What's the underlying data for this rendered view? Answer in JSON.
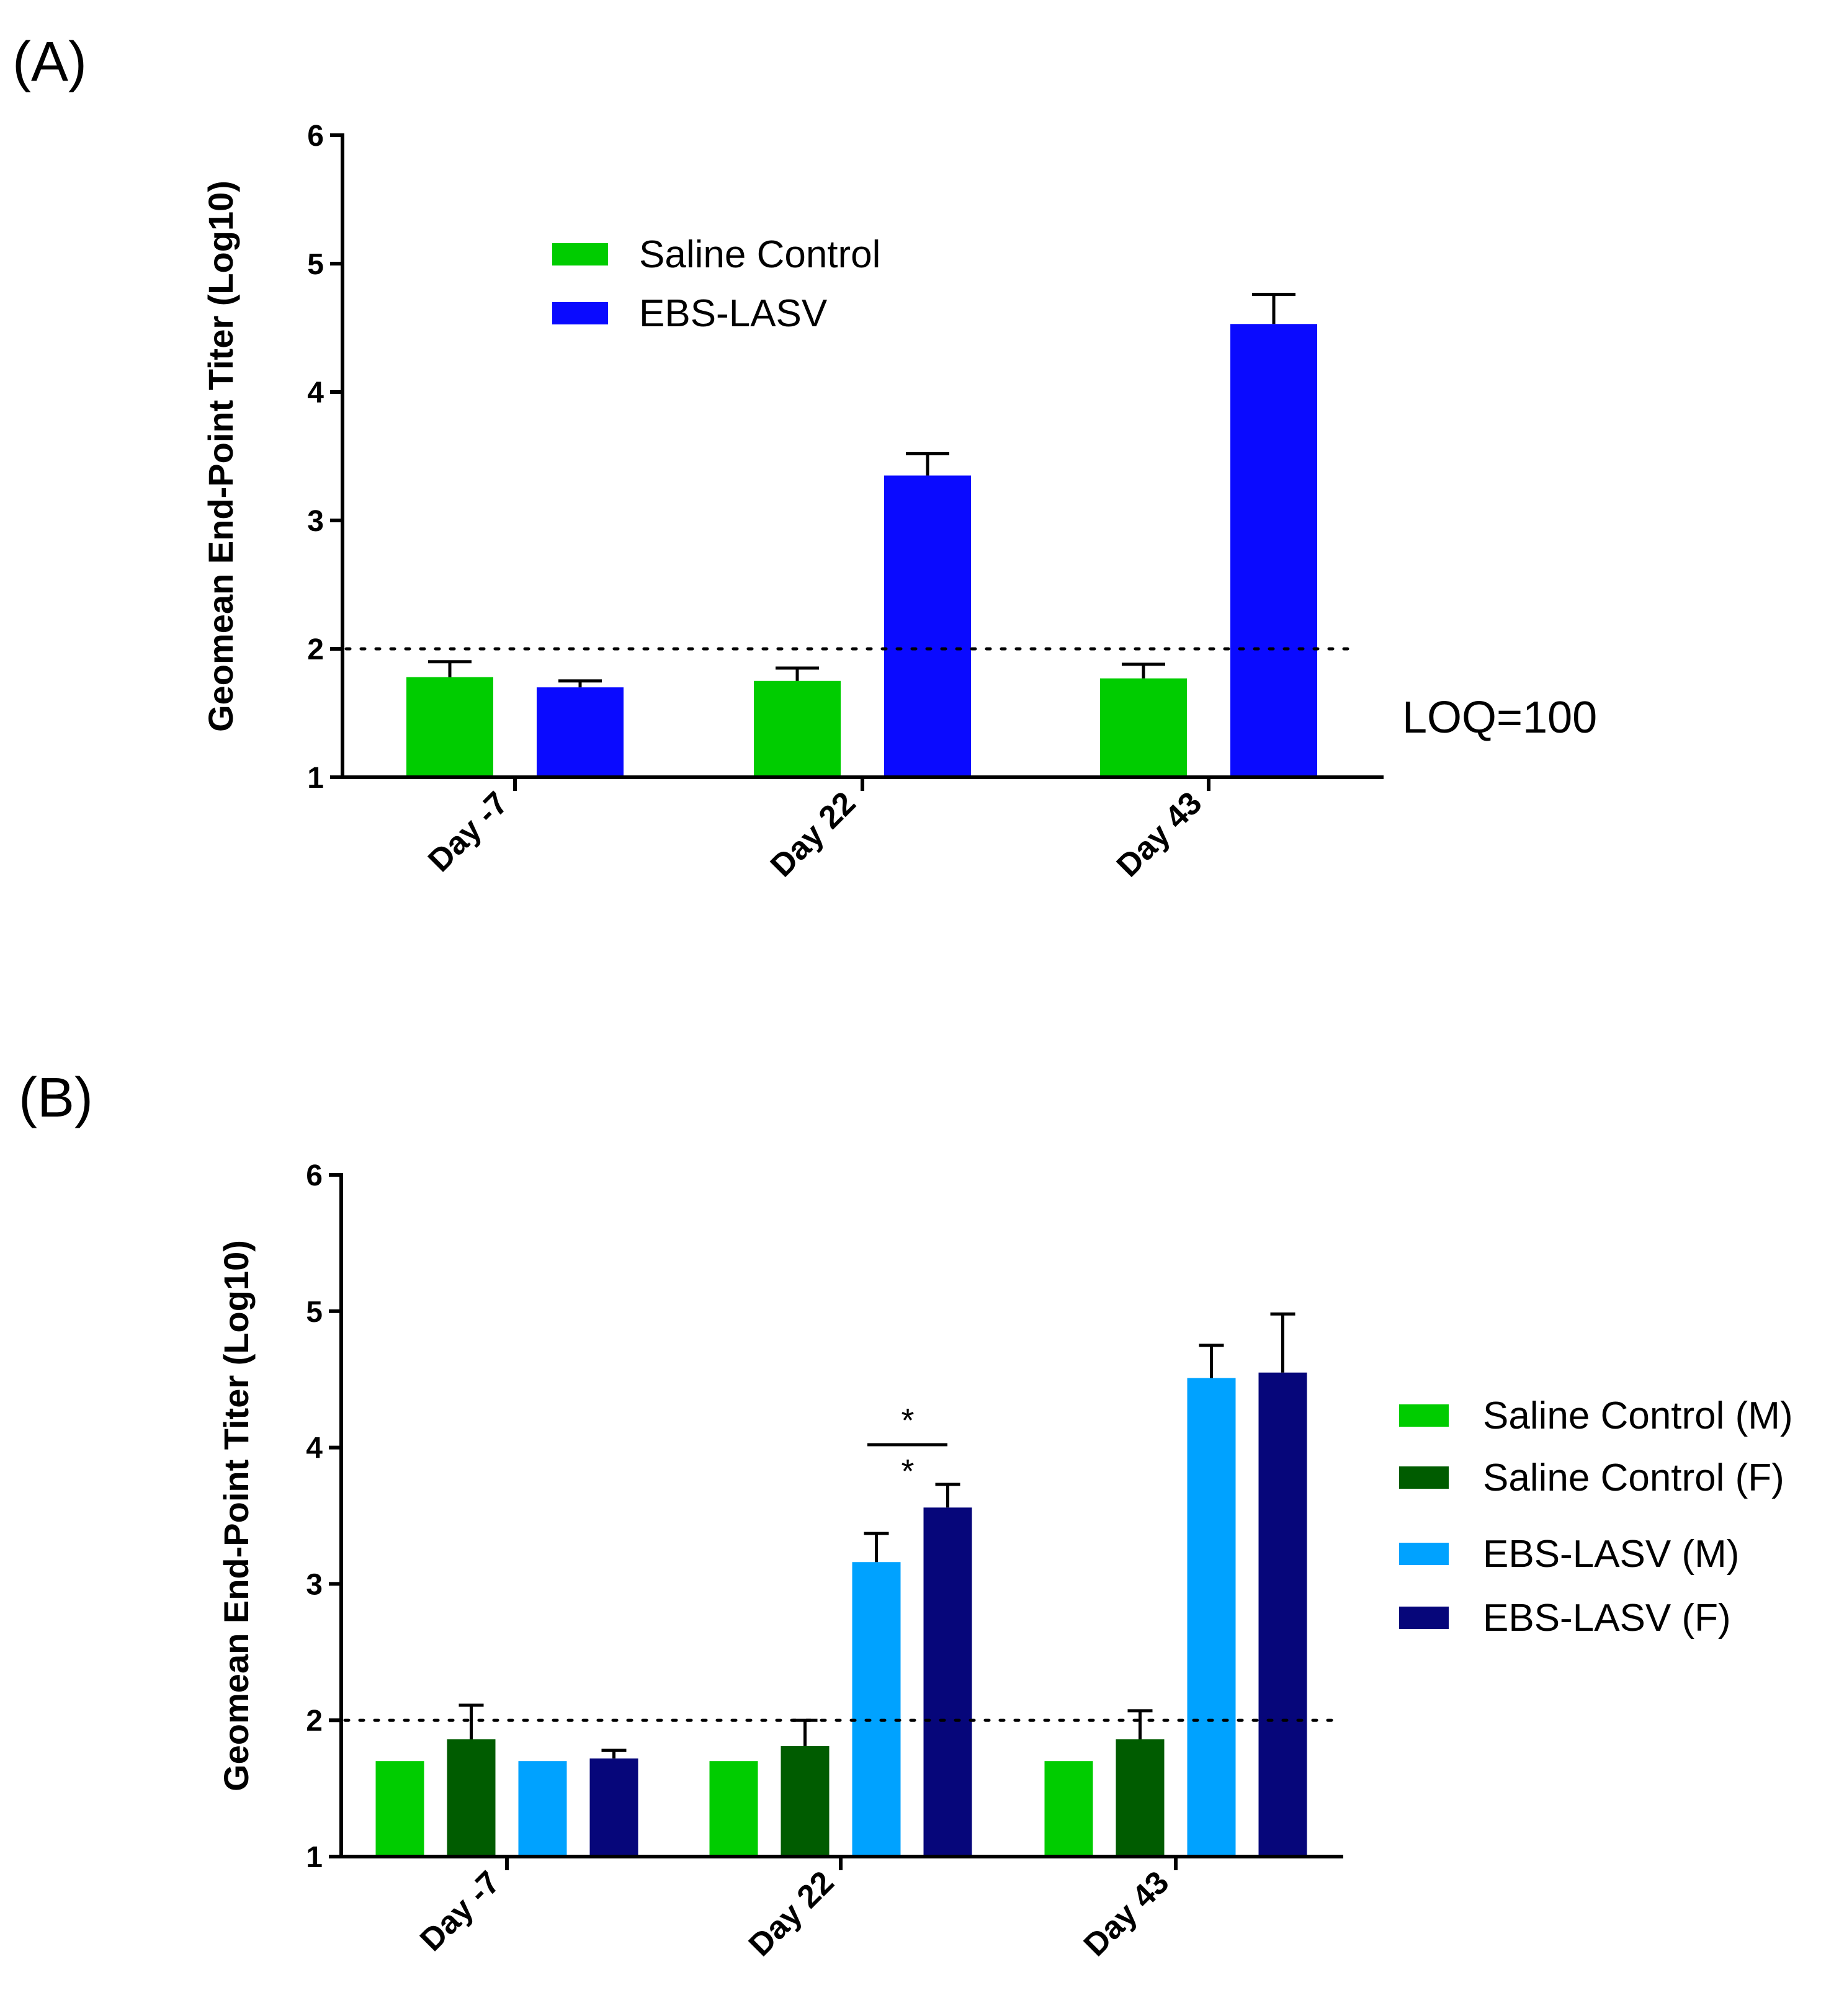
{
  "panels": {
    "a": {
      "label": "(A)",
      "loq_label": "LOQ=100"
    },
    "b": {
      "label": "(B)",
      "significance": [
        "*",
        "*"
      ]
    }
  },
  "chart_data": [
    {
      "type": "bar",
      "title": "",
      "xlabel": "",
      "ylabel": "Geomean End-Point Titer (Log10)",
      "ylim": [
        1,
        6
      ],
      "yticks": [
        "1",
        "2",
        "3",
        "4",
        "5",
        "6"
      ],
      "categories": [
        "Day -7",
        "Day 22",
        "Day 43"
      ],
      "reference_line": {
        "y": 2,
        "style": "dotted",
        "label": "LOQ=100"
      },
      "legend_position": "top-left",
      "series": [
        {
          "name": "Saline Control",
          "color": "#00cc00",
          "values": [
            1.78,
            1.75,
            1.77
          ],
          "error": [
            0.12,
            0.1,
            0.11
          ]
        },
        {
          "name": "EBS-LASV",
          "color": "#0a0aff",
          "values": [
            1.7,
            3.35,
            4.53
          ],
          "error": [
            0.05,
            0.17,
            0.23
          ]
        }
      ]
    },
    {
      "type": "bar",
      "title": "",
      "xlabel": "",
      "ylabel": "Geomean End-Point Titer (Log10)",
      "ylim": [
        1,
        6
      ],
      "yticks": [
        "1",
        "2",
        "3",
        "4",
        "5",
        "6"
      ],
      "categories": [
        "Day -7",
        "Day 22",
        "Day 43"
      ],
      "reference_line": {
        "y": 2,
        "style": "dotted"
      },
      "legend_position": "right",
      "annotations": [
        {
          "text": "* *",
          "between": [
            "EBS-LASV (M)",
            "EBS-LASV (F)"
          ],
          "category": "Day 22"
        }
      ],
      "series": [
        {
          "name": "Saline Control (M)",
          "color": "#00cc00",
          "values": [
            1.7,
            1.7,
            1.7
          ],
          "error": [
            0,
            0,
            0
          ]
        },
        {
          "name": "Saline Control (F)",
          "color": "#005c00",
          "values": [
            1.86,
            1.81,
            1.86
          ],
          "error": [
            0.25,
            0.19,
            0.21
          ]
        },
        {
          "name": "EBS-LASV (M)",
          "color": "#00a2ff",
          "values": [
            1.7,
            3.16,
            4.51
          ],
          "error": [
            0,
            0.21,
            0.24
          ]
        },
        {
          "name": "EBS-LASV (F)",
          "color": "#06067a",
          "values": [
            1.72,
            3.56,
            4.55
          ],
          "error": [
            0.06,
            0.17,
            0.43
          ]
        }
      ]
    }
  ]
}
